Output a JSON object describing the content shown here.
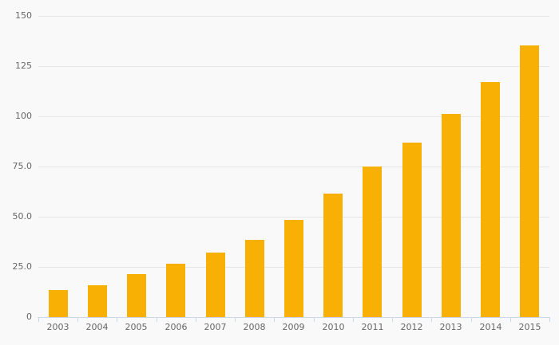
{
  "chart_data": {
    "type": "bar",
    "title": "",
    "xlabel": "",
    "ylabel": "",
    "categories": [
      "2003",
      "2004",
      "2005",
      "2006",
      "2007",
      "2008",
      "2009",
      "2010",
      "2011",
      "2012",
      "2013",
      "2014",
      "2015"
    ],
    "values": [
      13.5,
      15.8,
      21.3,
      26.5,
      32.0,
      38.3,
      48.3,
      61.5,
      75.0,
      87.0,
      101.0,
      117.0,
      135.5
    ],
    "ylim": [
      0,
      150
    ],
    "y_ticks": [
      {
        "value": 0,
        "label": "0"
      },
      {
        "value": 25,
        "label": "25.0"
      },
      {
        "value": 50,
        "label": "50.0"
      },
      {
        "value": 75,
        "label": "75.0"
      },
      {
        "value": 100,
        "label": "100"
      },
      {
        "value": 125,
        "label": "125"
      },
      {
        "value": 150,
        "label": "150"
      }
    ],
    "grid": "horizontal-only",
    "legend": "none",
    "colors": {
      "bar": "#f8b005",
      "axis": "#ccd6eb",
      "gridline": "#e6e6e6",
      "label": "#666666",
      "background": "#f9f9f9"
    }
  }
}
